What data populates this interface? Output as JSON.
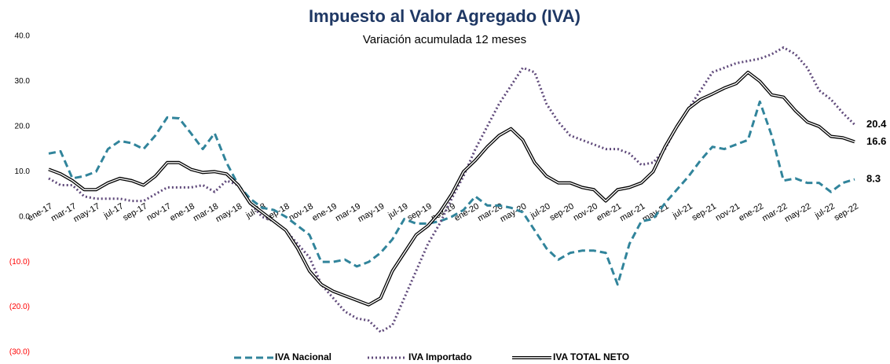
{
  "chart_data": {
    "type": "line",
    "title": "Impuesto al Valor Agregado (IVA)",
    "subtitle": "Variación acumulada 12 meses",
    "categories": [
      "ene-17",
      null,
      "mar-17",
      null,
      "may-17",
      null,
      "jul-17",
      null,
      "sep-17",
      null,
      "nov-17",
      null,
      "ene-18",
      null,
      "mar-18",
      null,
      "may-18",
      null,
      "jul-18",
      null,
      "sep-18",
      null,
      "nov-18",
      null,
      "ene-19",
      null,
      "mar-19",
      null,
      "may-19",
      null,
      "jul-19",
      null,
      "sep-19",
      null,
      "nov-19",
      null,
      "ene-20",
      null,
      "mar-20",
      null,
      "may-20",
      null,
      "jul-20",
      null,
      "sep-20",
      null,
      "nov-20",
      null,
      "ene-21",
      null,
      "mar-21",
      null,
      "may-21",
      null,
      "jul-21",
      null,
      "sep-21",
      null,
      "nov-21",
      null,
      "ene-22",
      null,
      "mar-22",
      null,
      "may-22",
      null,
      "jul-22",
      null,
      "sep-22"
    ],
    "series": [
      {
        "name": "IVA Nacional",
        "color": "#31849b",
        "dash": "dashed",
        "values": [
          14,
          14.5,
          8.5,
          9,
          10,
          15,
          16.8,
          16.3,
          15,
          18,
          22,
          21.8,
          18.5,
          15,
          18.5,
          12,
          7,
          4,
          2,
          1.5,
          0,
          -2,
          -4,
          -10,
          -10,
          -9.5,
          -11,
          -10,
          -8,
          -5,
          -0.5,
          -1.5,
          -1.5,
          -1,
          0,
          1.5,
          4.5,
          2.5,
          2.5,
          2,
          1,
          -3,
          -7,
          -9.5,
          -8,
          -7.5,
          -7.5,
          -8,
          -15,
          -6,
          -1,
          -0.5,
          3,
          6,
          9,
          12.5,
          15.5,
          15,
          16,
          17,
          25.5,
          18,
          8,
          8.5,
          7.5,
          7.5,
          5.5,
          7.5,
          8.3
        ]
      },
      {
        "name": "IVA Importado",
        "color": "#604a7b",
        "dash": "dotted",
        "values": [
          8.5,
          7,
          7,
          4.5,
          4,
          4,
          4,
          3.5,
          3.5,
          5,
          6.5,
          6.5,
          6.5,
          7,
          5.5,
          8,
          7,
          3,
          0,
          -1,
          -3,
          -6,
          -9,
          -15,
          -18,
          -21,
          -22.5,
          -23,
          -25.5,
          -24,
          -18,
          -12,
          -6,
          -1.5,
          4,
          9,
          15,
          20,
          25,
          29,
          33,
          32,
          25,
          21,
          18,
          17,
          16,
          15,
          15,
          14,
          11.5,
          12,
          15,
          20,
          24,
          28,
          32,
          33,
          34,
          34.5,
          35,
          36,
          37.5,
          36,
          33,
          28,
          26,
          23,
          20.4
        ]
      },
      {
        "name": "IVA TOTAL NETO",
        "color": "#000000",
        "dash": "double",
        "values": [
          10.5,
          9.5,
          8,
          6,
          6,
          7.5,
          8.5,
          8,
          7,
          9,
          12,
          12,
          10.5,
          9.8,
          10,
          9.5,
          7,
          3,
          1,
          -1,
          -3,
          -7,
          -12,
          -15,
          -16.5,
          -17.5,
          -18.5,
          -19.5,
          -18,
          -12,
          -8,
          -4,
          -2,
          1,
          5,
          10,
          12.5,
          15.5,
          18,
          19.5,
          17,
          12,
          9,
          7.5,
          7.5,
          6.5,
          6,
          3.5,
          6,
          6.5,
          7.5,
          10,
          15.5,
          20,
          24,
          26,
          27.2,
          28.5,
          29.5,
          32,
          30,
          27,
          26.5,
          23.5,
          21,
          20,
          17.8,
          17.5,
          16.6
        ]
      }
    ],
    "ylim": [
      -30,
      40
    ],
    "yticks": [
      {
        "value": 40,
        "label": "40.0"
      },
      {
        "value": 30,
        "label": "30.0"
      },
      {
        "value": 20,
        "label": "20.0"
      },
      {
        "value": 10,
        "label": "10.0"
      },
      {
        "value": 0,
        "label": "0.0"
      },
      {
        "value": -10,
        "label": "(10.0)"
      },
      {
        "value": -20,
        "label": "(20.0)"
      },
      {
        "value": -30,
        "label": "(30.0)"
      }
    ],
    "negative_tick_color": "#ff0000",
    "grid": false,
    "legend": "bottom"
  }
}
